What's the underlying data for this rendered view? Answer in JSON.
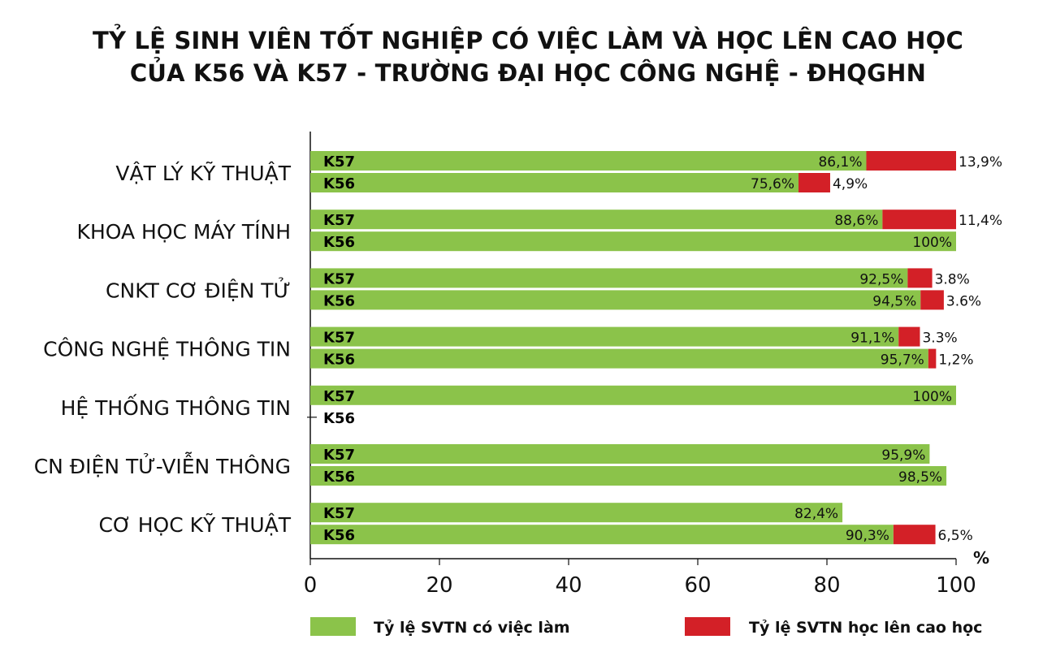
{
  "title_line1": "TỶ LỆ SINH VIÊN TỐT NGHIỆP CÓ VIỆC LÀM VÀ HỌC LÊN CAO HỌC",
  "title_line2": "CỦA K56 VÀ K57 - TRƯỜNG ĐẠI HỌC CÔNG NGHỆ - ĐHQGHN",
  "chart_data": {
    "type": "bar",
    "orientation": "horizontal",
    "stacked": true,
    "categories": [
      "VẬT LÝ KỸ THUẬT",
      "KHOA HỌC MÁY TÍNH",
      "CNKT CƠ ĐIỆN TỬ",
      "CÔNG NGHỆ THÔNG TIN",
      "HỆ THỐNG THÔNG TIN",
      "CN ĐIỆN TỬ-VIỄN THÔNG",
      "CƠ HỌC KỸ THUẬT"
    ],
    "cohorts": [
      "K57",
      "K56"
    ],
    "series": [
      {
        "name": "Tỷ lệ SVTN có việc làm",
        "color": "#8bc34a",
        "values": {
          "K57": [
            86.1,
            88.6,
            92.5,
            91.1,
            100,
            95.9,
            82.4
          ],
          "K56": [
            75.6,
            100,
            94.5,
            95.7,
            null,
            98.5,
            90.3
          ]
        },
        "labels": {
          "K57": [
            "86,1%",
            "88,6%",
            "92,5%",
            "91,1%",
            "100%",
            "95,9%",
            "82,4%"
          ],
          "K56": [
            "75,6%",
            "100%",
            "94,5%",
            "95,7%",
            "",
            "98,5%",
            "90,3%"
          ]
        }
      },
      {
        "name": "Tỷ lệ SVTN học lên cao học",
        "color": "#d32027",
        "values": {
          "K57": [
            13.9,
            11.4,
            3.8,
            3.3,
            null,
            null,
            null
          ],
          "K56": [
            4.9,
            null,
            3.6,
            1.2,
            null,
            null,
            6.5
          ]
        },
        "labels": {
          "K57": [
            "13,9%",
            "11,4%",
            "3.8%",
            "3.3%",
            "",
            "",
            ""
          ],
          "K56": [
            "4,9%",
            "",
            "3.6%",
            "1,2%",
            "",
            "",
            "6,5%"
          ]
        }
      }
    ],
    "x_ticks": [
      "0",
      "20",
      "40",
      "60",
      "80",
      "100"
    ],
    "xlim": [
      0,
      100
    ],
    "unit": "%",
    "legend_position": "bottom"
  }
}
